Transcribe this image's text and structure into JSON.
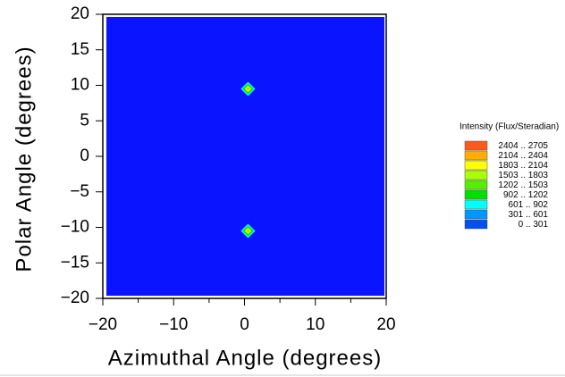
{
  "chart_data": {
    "type": "contour",
    "x_label": "Azimuthal Angle (degrees)",
    "y_label": "Polar Angle (degrees)",
    "xlim": [
      -20,
      20
    ],
    "ylim": [
      -20,
      20
    ],
    "xticks": [
      {
        "value": -20,
        "label": "−20"
      },
      {
        "value": -10,
        "label": "−10"
      },
      0,
      10,
      20
    ],
    "xminor": [
      -15,
      -5,
      5,
      15
    ],
    "yticks": [
      {
        "value": -20,
        "label": "−20"
      },
      {
        "value": -15,
        "label": "−15"
      },
      {
        "value": -10,
        "label": "−10"
      },
      {
        "value": -5,
        "label": "−5"
      },
      0,
      5,
      10,
      15,
      20
    ],
    "background_color": "#0a14ff",
    "spots": {
      "x": [
        0.5,
        0.5
      ],
      "y": [
        9.5,
        -10.5
      ]
    },
    "legend_title": "Intensity (Flux/Steradian)",
    "levels": [
      {
        "label": "2404 .. 2705",
        "color": "#ff5a1e"
      },
      {
        "label": "2104 .. 2404",
        "color": "#ffae00"
      },
      {
        "label": "1803 .. 2104",
        "color": "#ffff00"
      },
      {
        "label": "1503 .. 1803",
        "color": "#aaff00"
      },
      {
        "label": "1202 .. 1503",
        "color": "#55f000"
      },
      {
        "label": "902 .. 1202",
        "color": "#00e000"
      },
      {
        "label": "601 .. 902",
        "color": "#00ffff"
      },
      {
        "label": "301 .. 601",
        "color": "#0096ff"
      },
      {
        "label": "0 .. 301",
        "color": "#0050f0"
      }
    ]
  }
}
